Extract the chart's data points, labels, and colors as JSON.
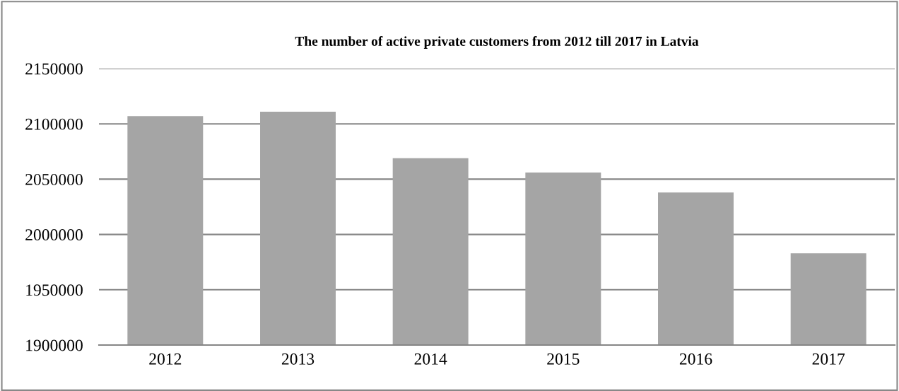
{
  "chart_data": {
    "type": "bar",
    "title": "The number of active private customers from 2012 till 2017 in Latvia",
    "categories": [
      "2012",
      "2013",
      "2014",
      "2015",
      "2016",
      "2017"
    ],
    "values": [
      2107000,
      2111000,
      2069000,
      2056000,
      2038000,
      1983000
    ],
    "color": "#a5a5a5",
    "ylim": [
      1900000,
      2150000
    ],
    "yticks": [
      1900000,
      1950000,
      2000000,
      2050000,
      2100000,
      2150000
    ],
    "grid": "y",
    "legend": false
  }
}
